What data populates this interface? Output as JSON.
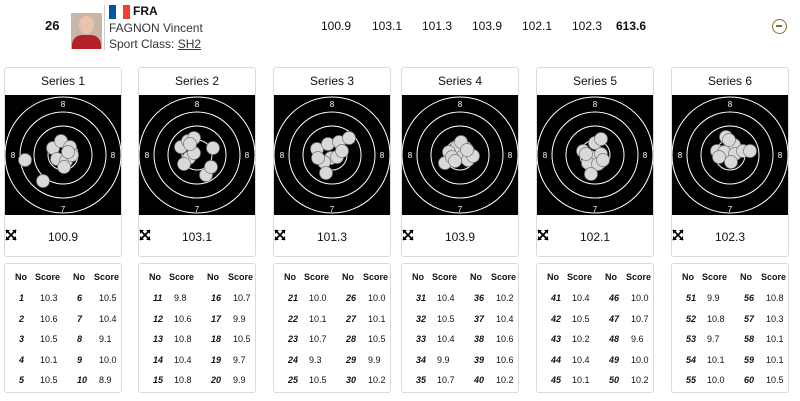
{
  "header": {
    "rank": "26",
    "country": "FRA",
    "athlete_name": "FAGNON Vincent",
    "sport_class_label": "Sport Class:",
    "sport_class_value": "SH2",
    "series_scores": [
      "100.9",
      "103.1",
      "101.3",
      "103.9",
      "102.1",
      "102.3"
    ],
    "total": "613.6",
    "flag_colors": [
      "#0055a4",
      "#ffffff",
      "#ef4135"
    ]
  },
  "table_headers": {
    "no": "No",
    "score": "Score"
  },
  "target_ring_label_inner": "8",
  "target_ring_label_outer": "7",
  "series": [
    {
      "title": "Series 1",
      "score": "100.9",
      "shots": [
        {
          "no": "1",
          "score": "10.3"
        },
        {
          "no": "2",
          "score": "10.6"
        },
        {
          "no": "3",
          "score": "10.5"
        },
        {
          "no": "4",
          "score": "10.1"
        },
        {
          "no": "5",
          "score": "10.5"
        },
        {
          "no": "6",
          "score": "10.5"
        },
        {
          "no": "7",
          "score": "10.4"
        },
        {
          "no": "8",
          "score": "9.1"
        },
        {
          "no": "9",
          "score": "10.0"
        },
        {
          "no": "10",
          "score": "8.9"
        }
      ]
    },
    {
      "title": "Series 2",
      "score": "103.1",
      "shots": [
        {
          "no": "11",
          "score": "9.8"
        },
        {
          "no": "12",
          "score": "10.6"
        },
        {
          "no": "13",
          "score": "10.8"
        },
        {
          "no": "14",
          "score": "10.4"
        },
        {
          "no": "15",
          "score": "10.8"
        },
        {
          "no": "16",
          "score": "10.7"
        },
        {
          "no": "17",
          "score": "9.9"
        },
        {
          "no": "18",
          "score": "10.5"
        },
        {
          "no": "19",
          "score": "9.7"
        },
        {
          "no": "20",
          "score": "9.9"
        }
      ]
    },
    {
      "title": "Series 3",
      "score": "101.3",
      "shots": [
        {
          "no": "21",
          "score": "10.0"
        },
        {
          "no": "22",
          "score": "10.1"
        },
        {
          "no": "23",
          "score": "10.7"
        },
        {
          "no": "24",
          "score": "9.3"
        },
        {
          "no": "25",
          "score": "10.5"
        },
        {
          "no": "26",
          "score": "10.0"
        },
        {
          "no": "27",
          "score": "10.1"
        },
        {
          "no": "28",
          "score": "10.5"
        },
        {
          "no": "29",
          "score": "9.9"
        },
        {
          "no": "30",
          "score": "10.2"
        }
      ]
    },
    {
      "title": "Series 4",
      "score": "103.9",
      "shots": [
        {
          "no": "31",
          "score": "10.4"
        },
        {
          "no": "32",
          "score": "10.5"
        },
        {
          "no": "33",
          "score": "10.4"
        },
        {
          "no": "34",
          "score": "9.9"
        },
        {
          "no": "35",
          "score": "10.7"
        },
        {
          "no": "36",
          "score": "10.2"
        },
        {
          "no": "37",
          "score": "10.4"
        },
        {
          "no": "38",
          "score": "10.6"
        },
        {
          "no": "39",
          "score": "10.6"
        },
        {
          "no": "40",
          "score": "10.2"
        }
      ]
    },
    {
      "title": "Series 5",
      "score": "102.1",
      "shots": [
        {
          "no": "41",
          "score": "10.4"
        },
        {
          "no": "42",
          "score": "10.5"
        },
        {
          "no": "43",
          "score": "10.2"
        },
        {
          "no": "44",
          "score": "10.4"
        },
        {
          "no": "45",
          "score": "10.1"
        },
        {
          "no": "46",
          "score": "10.0"
        },
        {
          "no": "47",
          "score": "10.7"
        },
        {
          "no": "48",
          "score": "9.6"
        },
        {
          "no": "49",
          "score": "10.0"
        },
        {
          "no": "50",
          "score": "10.2"
        }
      ]
    },
    {
      "title": "Series 6",
      "score": "102.3",
      "shots": [
        {
          "no": "51",
          "score": "9.9"
        },
        {
          "no": "52",
          "score": "10.8"
        },
        {
          "no": "53",
          "score": "9.7"
        },
        {
          "no": "54",
          "score": "10.1"
        },
        {
          "no": "55",
          "score": "10.0"
        },
        {
          "no": "56",
          "score": "10.8"
        },
        {
          "no": "57",
          "score": "10.3"
        },
        {
          "no": "58",
          "score": "10.1"
        },
        {
          "no": "59",
          "score": "10.1"
        },
        {
          "no": "60",
          "score": "10.5"
        }
      ]
    }
  ]
}
